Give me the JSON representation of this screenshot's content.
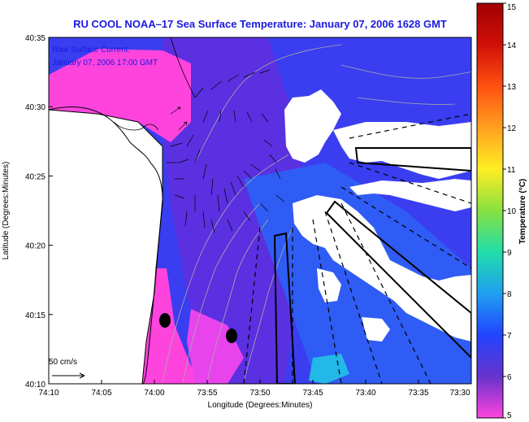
{
  "title": "RU COOL  NOAA–17  Sea Surface Temperature:  January 07, 2006 1628 GMT",
  "annotation": {
    "line1": "Raw Surface Current:",
    "line2": "January 07, 2006 17:00 GMT"
  },
  "scale_bar": {
    "label": "50 cm/s"
  },
  "axes": {
    "xlabel": "Longitude (Degrees:Minutes)",
    "ylabel": "Latitude (Degrees:Minutes)",
    "xticks": [
      "74:10",
      "74:05",
      "74:00",
      "73:55",
      "73:50",
      "73:45",
      "73:40",
      "73:35",
      "73:30"
    ],
    "yticks": [
      "40:35",
      "40:30",
      "40:25",
      "40:20",
      "40:15",
      "40:10"
    ]
  },
  "colorbar": {
    "label": "Temperature (°C)",
    "ticks": [
      "15",
      "14",
      "13",
      "12",
      "11",
      "10",
      "9",
      "8",
      "7",
      "6",
      "5"
    ],
    "min": 5,
    "max": 15,
    "colors": [
      "#ff44dd",
      "#6633cc",
      "#2244ff",
      "#1f9ff0",
      "#22ddaa",
      "#88e040",
      "#ffee22",
      "#ffa020",
      "#ff5010",
      "#d01008",
      "#a00000"
    ]
  },
  "colors": {
    "land": "#ffffff",
    "ocean_primary": "#3a3ef0",
    "ocean_nearshore": "#ff44dd",
    "cloud": "#ffffff",
    "title": "#1a1ae0"
  }
}
